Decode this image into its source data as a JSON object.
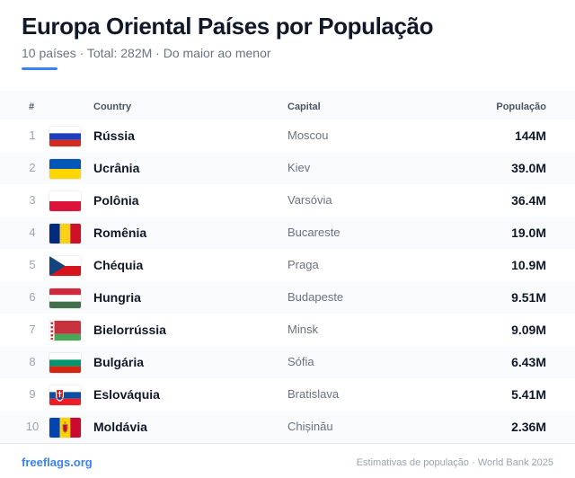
{
  "header": {
    "title": "Europa Oriental Países por População",
    "subtitle": "10 países · Total: 282M · Do maior ao menor",
    "accent_color": "#3b82f6"
  },
  "table": {
    "columns": {
      "rank": "#",
      "country": "Country",
      "capital": "Capital",
      "population": "População"
    },
    "rows": [
      {
        "rank": "1",
        "country": "Rússia",
        "capital": "Moscou",
        "population": "144M",
        "flag": "russia-flag-icon"
      },
      {
        "rank": "2",
        "country": "Ucrânia",
        "capital": "Kiev",
        "population": "39.0M",
        "flag": "ukraine-flag-icon"
      },
      {
        "rank": "3",
        "country": "Polônia",
        "capital": "Varsóvia",
        "population": "36.4M",
        "flag": "poland-flag-icon"
      },
      {
        "rank": "4",
        "country": "Romênia",
        "capital": "Bucareste",
        "population": "19.0M",
        "flag": "romania-flag-icon"
      },
      {
        "rank": "5",
        "country": "Chéquia",
        "capital": "Praga",
        "population": "10.9M",
        "flag": "czechia-flag-icon"
      },
      {
        "rank": "6",
        "country": "Hungria",
        "capital": "Budapeste",
        "population": "9.51M",
        "flag": "hungary-flag-icon"
      },
      {
        "rank": "7",
        "country": "Bielorrússia",
        "capital": "Minsk",
        "population": "9.09M",
        "flag": "belarus-flag-icon"
      },
      {
        "rank": "8",
        "country": "Bulgária",
        "capital": "Sófia",
        "population": "6.43M",
        "flag": "bulgaria-flag-icon"
      },
      {
        "rank": "9",
        "country": "Eslováquia",
        "capital": "Bratislava",
        "population": "5.41M",
        "flag": "slovakia-flag-icon"
      },
      {
        "rank": "10",
        "country": "Moldávia",
        "capital": "Chișinău",
        "population": "2.36M",
        "flag": "moldova-flag-icon"
      }
    ]
  },
  "footer": {
    "brand": "freeflags.org",
    "source": "Estimativas de população · World Bank 2025"
  }
}
